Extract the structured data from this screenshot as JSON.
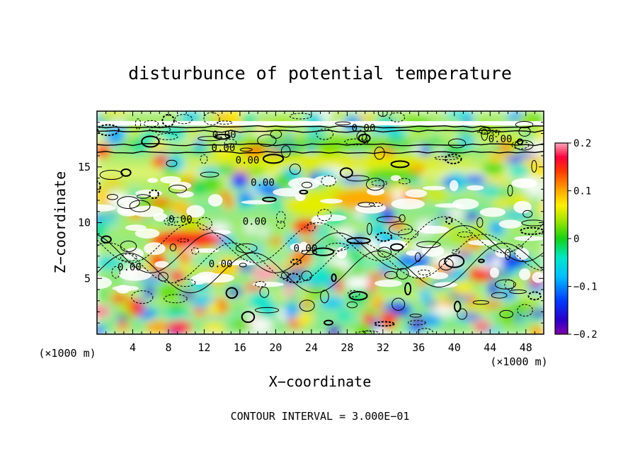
{
  "chart_data": {
    "type": "heatmap",
    "title": "disturbunce of potential temperature",
    "xlabel": "X−coordinate",
    "ylabel": "Z−coordinate",
    "x_unit_left": "(×1000 m)",
    "x_unit_right": "(×1000 m)",
    "xlim": [
      0,
      50
    ],
    "ylim": [
      0,
      20
    ],
    "xticks": [
      4,
      8,
      12,
      16,
      20,
      24,
      28,
      32,
      36,
      40,
      44,
      48
    ],
    "yticks": [
      5,
      10,
      15
    ],
    "colorbar": {
      "range": [
        -0.2,
        0.2
      ],
      "tick_labels": [
        "0.2",
        "0.1",
        "0",
        "−0.1",
        "−0.2"
      ],
      "tick_values": [
        0.2,
        0.1,
        0,
        -0.1,
        -0.2
      ]
    },
    "contour_interval_text": "CONTOUR INTERVAL = 3.000E−01",
    "contour_labels": [
      "0.00",
      "0.00",
      "0.00",
      "0.00",
      "0.00",
      "0.00",
      "0.00",
      "0.00",
      "0.00",
      "0.00"
    ]
  }
}
